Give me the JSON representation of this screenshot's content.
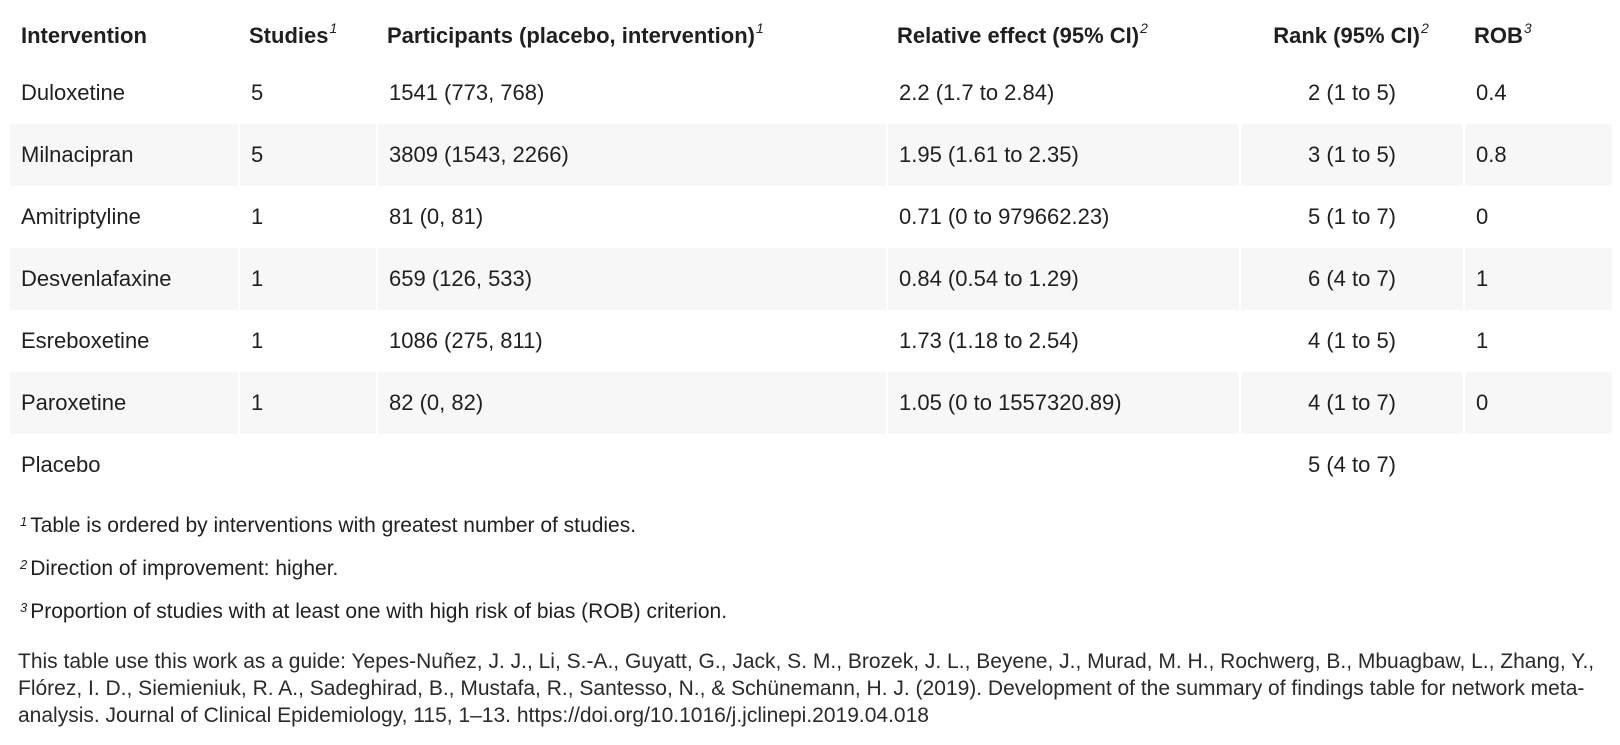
{
  "table": {
    "headers": {
      "intervention": "Intervention",
      "studies": "Studies",
      "studies_note": "1",
      "participants": "Participants (placebo, intervention)",
      "participants_note": "1",
      "relative_effect": "Relative effect (95% CI)",
      "relative_effect_note": "2",
      "rank": "Rank (95% CI)",
      "rank_note": "2",
      "rob": "ROB",
      "rob_note": "3"
    },
    "rows": [
      {
        "intervention": "Duloxetine",
        "studies": "5",
        "participants": "1541 (773, 768)",
        "relative_effect": "2.2 (1.7 to 2.84)",
        "rank": "2 (1 to 5)",
        "rob": "0.4"
      },
      {
        "intervention": "Milnacipran",
        "studies": "5",
        "participants": "3809 (1543, 2266)",
        "relative_effect": "1.95 (1.61 to 2.35)",
        "rank": "3 (1 to 5)",
        "rob": "0.8"
      },
      {
        "intervention": "Amitriptyline",
        "studies": "1",
        "participants": "81 (0, 81)",
        "relative_effect": "0.71 (0 to 979662.23)",
        "rank": "5 (1 to 7)",
        "rob": "0"
      },
      {
        "intervention": "Desvenlafaxine",
        "studies": "1",
        "participants": "659 (126, 533)",
        "relative_effect": "0.84 (0.54 to 1.29)",
        "rank": "6 (4 to 7)",
        "rob": "1"
      },
      {
        "intervention": "Esreboxetine",
        "studies": "1",
        "participants": "1086 (275, 811)",
        "relative_effect": "1.73 (1.18 to 2.54)",
        "rank": "4 (1 to 5)",
        "rob": "1"
      },
      {
        "intervention": "Paroxetine",
        "studies": "1",
        "participants": "82 (0, 82)",
        "relative_effect": "1.05 (0 to 1557320.89)",
        "rank": "4 (1 to 7)",
        "rob": "0"
      },
      {
        "intervention": "Placebo",
        "studies": "",
        "participants": "",
        "relative_effect": "",
        "rank": "5 (4 to 7)",
        "rob": ""
      }
    ]
  },
  "footnotes": [
    {
      "marker": "1",
      "text": "Table is ordered by interventions with greatest number of studies."
    },
    {
      "marker": "2",
      "text": "Direction of improvement: higher."
    },
    {
      "marker": "3",
      "text": "Proportion of studies with at least one with high risk of bias (ROB) criterion."
    }
  ],
  "citation": "This table use this work as a guide: Yepes-Nuñez, J. J., Li, S.-A., Guyatt, G., Jack, S. M., Brozek, J. L., Beyene, J., Murad, M. H., Rochwerg, B., Mbuagbaw, L., Zhang, Y., Flórez, I. D., Siemieniuk, R. A., Sadeghirad, B., Mustafa, R., Santesso, N., & Schünemann, H. J. (2019). Development of the summary of findings table for network meta-analysis. Journal of Clinical Epidemiology, 115, 1–13. https://doi.org/10.1016/j.jclinepi.2019.04.018",
  "colors": {
    "text": "#1f1f1f",
    "row_shade": "#f7f7f7",
    "background": "#ffffff"
  }
}
